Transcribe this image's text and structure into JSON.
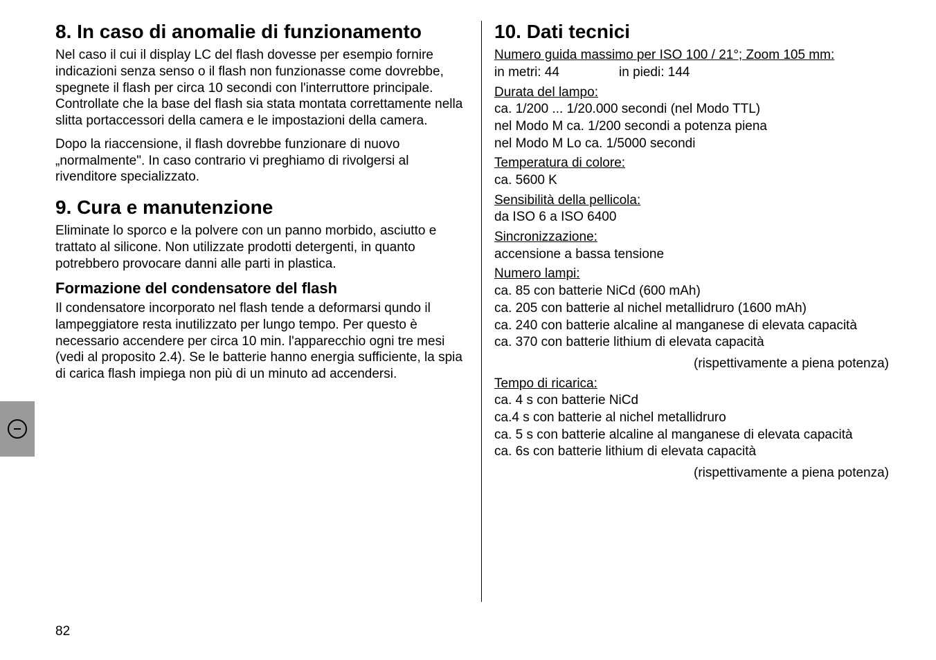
{
  "left": {
    "s8_title": "8. In caso di anomalie di funzionamento",
    "s8_p1": "Nel caso il cui il display LC del flash dovesse per esempio fornire indicazioni senza senso o il flash non funzionasse come dovrebbe, spegnete il flash per circa 10 secondi con l'interruttore principale. Controllate che la base del flash sia stata montata correttamente nella slitta portaccessori della camera e le impostazioni della camera.",
    "s8_p2": "Dopo la riaccensione, il flash dovrebbe funzionare di nuovo „normalmente\". In caso contrario vi preghiamo di rivolgersi al rivenditore specializzato.",
    "s9_title": "9. Cura e manutenzione",
    "s9_p1": "Eliminate lo sporco e la polvere con un panno morbido, asciutto e trattato al silicone. Non utilizzate prodotti detergenti, in quanto potrebbero provocare danni alle parti in plastica.",
    "s9_sub": "Formazione del condensatore del flash",
    "s9_p2": "Il condensatore incorporato nel flash tende a deformarsi qundo il lampeggiatore resta inutilizzato per lungo tempo. Per questo è necessario accendere per circa 10 min. l'apparecchio ogni tre mesi (vedi al proposito 2.4). Se le batterie hanno energia sufficiente, la spia di carica flash impiega non più di un minuto ad accendersi."
  },
  "right": {
    "s10_title": "10. Dati tecnici",
    "gn_label": "Numero guida massimo per ISO 100 / 21°; Zoom 105 mm:",
    "gn_m": "in metri: 44",
    "gn_ft": "in piedi: 144",
    "dur_label": "Durata del lampo:",
    "dur_l1": "ca. 1/200 ... 1/20.000 secondi (nel Modo TTL)",
    "dur_l2": "nel Modo M ca. 1/200 secondi a potenza piena",
    "dur_l3": "nel Modo M Lo  ca. 1/5000 secondi",
    "temp_label": "Temperatura di colore:",
    "temp_v": "ca. 5600 K",
    "sens_label": "Sensibilità della pellicola:",
    "sens_v": "da ISO 6 a ISO 6400",
    "sync_label": "Sincronizzazione:",
    "sync_v": "accensione a bassa tensione",
    "num_label": "Numero lampi:",
    "num_l1": "ca. 85 con batterie NiCd (600 mAh)",
    "num_l2": "ca. 205 con batterie al nichel metallidruro (1600 mAh)",
    "num_l3": "ca. 240 con batterie alcaline al manganese di elevata capacità",
    "num_l4": "ca. 370 con batterie lithium di elevata capacità",
    "note1": "(rispettivamente a piena potenza)",
    "rec_label": "Tempo di ricarica:",
    "rec_l1": "ca. 4 s con batterie NiCd",
    "rec_l2": "ca.4 s con batterie al nichel metallidruro",
    "rec_l3": "ca. 5 s con batterie alcaline al manganese di elevata capacità",
    "rec_l4": "ca. 6s con batterie lithium di elevata capacità",
    "note2": "(rispettivamente a piena potenza)"
  },
  "page_number": "82"
}
